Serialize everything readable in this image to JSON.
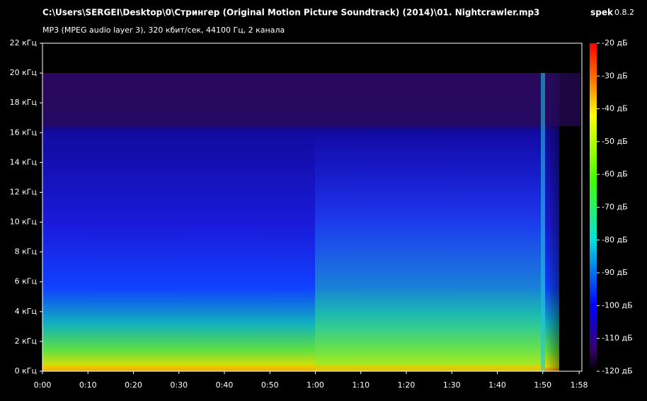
{
  "chart_data": {
    "type": "spectrogram",
    "title": "C:\\Users\\SERGEI\\Desktop\\0\\Стрингер (Original Motion Picture Soundtrack) (2014)\\01. Nightcrawler.mp3",
    "subtitle": "MP3 (MPEG audio layer 3), 320 кбит/сек, 44100 Гц, 2 канала",
    "app_name": "spek",
    "app_version": "0.8.2",
    "xlim": [
      0,
      118.6
    ],
    "xticks": [
      {
        "value": 0,
        "label": "0:00"
      },
      {
        "value": 10,
        "label": "0:10"
      },
      {
        "value": 20,
        "label": "0:20"
      },
      {
        "value": 30,
        "label": "0:30"
      },
      {
        "value": 40,
        "label": "0:40"
      },
      {
        "value": 50,
        "label": "0:50"
      },
      {
        "value": 60,
        "label": "1:00"
      },
      {
        "value": 70,
        "label": "1:10"
      },
      {
        "value": 80,
        "label": "1:20"
      },
      {
        "value": 90,
        "label": "1:30"
      },
      {
        "value": 100,
        "label": "1:40"
      },
      {
        "value": 110,
        "label": "1:50"
      },
      {
        "value": 118,
        "label": "1:58"
      }
    ],
    "ylim": [
      0,
      22
    ],
    "yticks": [
      {
        "value": 0,
        "label": "0 кГц"
      },
      {
        "value": 2,
        "label": "2 кГц"
      },
      {
        "value": 4,
        "label": "4 кГц"
      },
      {
        "value": 6,
        "label": "6 кГц"
      },
      {
        "value": 8,
        "label": "8 кГц"
      },
      {
        "value": 10,
        "label": "10 кГц"
      },
      {
        "value": 12,
        "label": "12 кГц"
      },
      {
        "value": 14,
        "label": "14 кГц"
      },
      {
        "value": 16,
        "label": "16 кГц"
      },
      {
        "value": 18,
        "label": "18 кГц"
      },
      {
        "value": 20,
        "label": "20 кГц"
      },
      {
        "value": 22,
        "label": "22 кГц"
      }
    ],
    "colorbar": {
      "lim": [
        -120,
        -20
      ],
      "ticks": [
        {
          "value": -20,
          "label": "-20 дБ"
        },
        {
          "value": -30,
          "label": "-30 дБ"
        },
        {
          "value": -40,
          "label": "-40 дБ"
        },
        {
          "value": -50,
          "label": "-50 дБ"
        },
        {
          "value": -60,
          "label": "-60 дБ"
        },
        {
          "value": -70,
          "label": "-70 дБ"
        },
        {
          "value": -80,
          "label": "-80 дБ"
        },
        {
          "value": -90,
          "label": "-90 дБ"
        },
        {
          "value": -100,
          "label": "-100 дБ"
        },
        {
          "value": -110,
          "label": "-110 дБ"
        },
        {
          "value": -120,
          "label": "-120 дБ"
        }
      ]
    }
  }
}
